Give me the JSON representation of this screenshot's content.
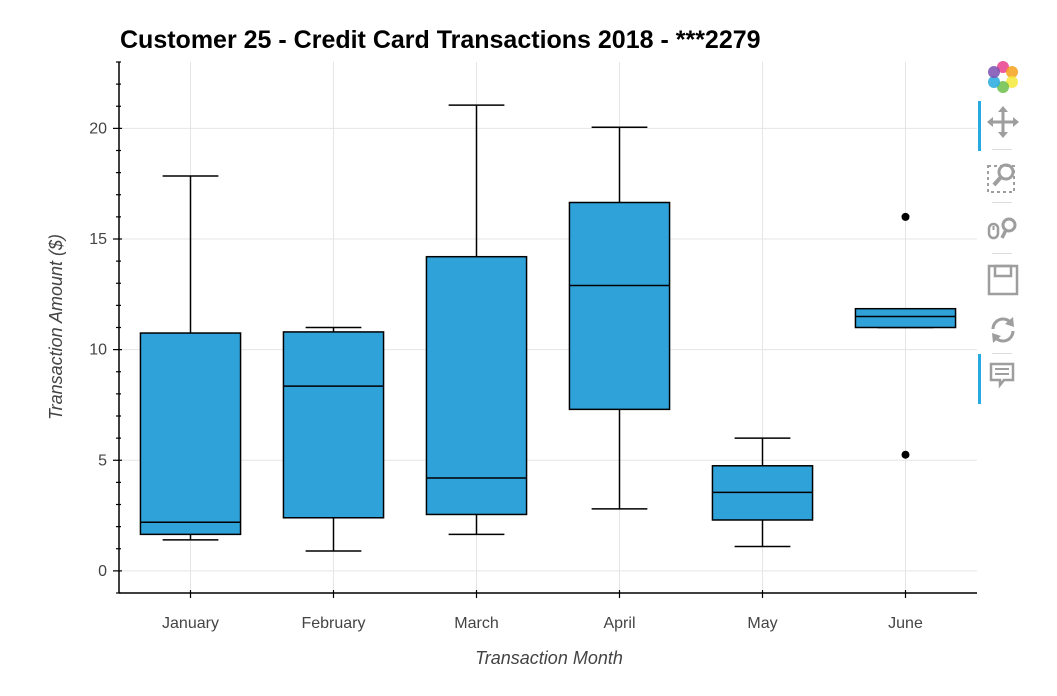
{
  "chart_data": {
    "type": "box",
    "title": "Customer 25 - Credit Card Transactions 2018 - ***2279",
    "xlabel": "Transaction Month",
    "ylabel": "Transaction Amount ($)",
    "categories": [
      "January",
      "February",
      "March",
      "April",
      "May",
      "June"
    ],
    "ylim": [
      -1,
      23
    ],
    "yticks": [
      0,
      5,
      10,
      15,
      20
    ],
    "grid": true,
    "box_color": "#30a2da",
    "box_edge_color": "#000000",
    "boxes": [
      {
        "category": "January",
        "whisker_low": 1.4,
        "q1": 1.65,
        "median": 2.2,
        "q3": 10.75,
        "whisker_high": 17.85,
        "outliers": []
      },
      {
        "category": "February",
        "whisker_low": 0.9,
        "q1": 2.4,
        "median": 8.35,
        "q3": 10.8,
        "whisker_high": 11.0,
        "outliers": []
      },
      {
        "category": "March",
        "whisker_low": 1.65,
        "q1": 2.55,
        "median": 4.2,
        "q3": 14.2,
        "whisker_high": 21.05,
        "outliers": []
      },
      {
        "category": "April",
        "whisker_low": 2.8,
        "q1": 7.3,
        "median": 12.9,
        "q3": 16.65,
        "whisker_high": 20.05,
        "outliers": []
      },
      {
        "category": "May",
        "whisker_low": 1.1,
        "q1": 2.3,
        "median": 3.55,
        "q3": 4.75,
        "whisker_high": 6.0,
        "outliers": []
      },
      {
        "category": "June",
        "whisker_low": 11.0,
        "q1": 11.0,
        "median": 11.5,
        "q3": 11.85,
        "whisker_high": 11.85,
        "outliers": [
          16.0,
          5.25
        ]
      }
    ]
  },
  "toolbar": {
    "tools": [
      "bokeh-logo-icon",
      "pan-icon",
      "box-zoom-icon",
      "wheel-zoom-icon",
      "save-icon",
      "reset-icon",
      "hover-icon"
    ],
    "active_color": "#26aae1"
  }
}
